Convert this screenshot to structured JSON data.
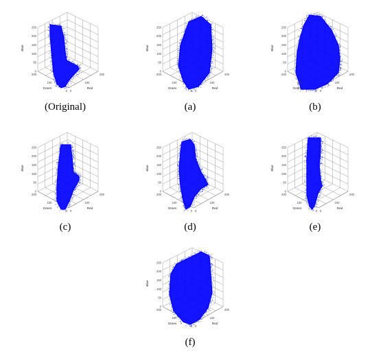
{
  "figure": {
    "axis_labels": {
      "x": "Red",
      "y": "Green",
      "z": "Blue"
    },
    "vertical_ticks": [
      "0",
      "50",
      "100",
      "150",
      "200",
      "250"
    ],
    "horizontal_ticks": [
      "0",
      "100",
      "200"
    ],
    "plot_color": "#0000ff",
    "panels": [
      {
        "id": "original",
        "caption": "(Original)"
      },
      {
        "id": "a",
        "caption": "(a)"
      },
      {
        "id": "b",
        "caption": "(b)"
      },
      {
        "id": "c",
        "caption": "(c)"
      },
      {
        "id": "d",
        "caption": "(d)"
      },
      {
        "id": "e",
        "caption": "(e)"
      },
      {
        "id": "f",
        "caption": "(f)"
      }
    ]
  }
}
